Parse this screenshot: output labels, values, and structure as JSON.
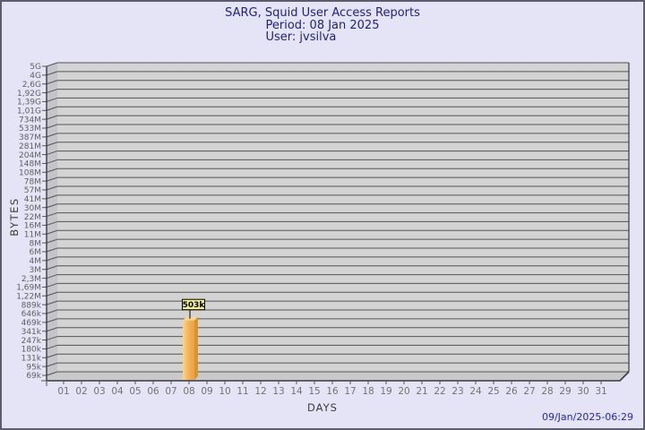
{
  "header": {
    "title": "SARG, Squid User Access Reports",
    "period": "Period: 08 Jan 2025",
    "user": "User: jvsilva"
  },
  "footer": {
    "timestamp": "09/Jan/2025-06:29"
  },
  "chart_data": {
    "type": "bar",
    "title": "SARG, Squid User Access Reports",
    "subtitle": "Period: 08 Jan 2025",
    "annotation": "User: jvsilva",
    "xlabel": "DAYS",
    "ylabel": "BYTES",
    "y_scale": "log",
    "grid": "horizontal",
    "legend": "none",
    "ylim": [
      "69k",
      "5G"
    ],
    "y_tick_labels": [
      "5G",
      "4G",
      "2,6G",
      "1,92G",
      "1,39G",
      "1,01G",
      "734M",
      "533M",
      "387M",
      "281M",
      "204M",
      "148M",
      "108M",
      "78M",
      "57M",
      "41M",
      "30M",
      "22M",
      "16M",
      "11M",
      "8M",
      "6M",
      "4M",
      "3M",
      "2,3M",
      "1,69M",
      "1,22M",
      "889k",
      "646k",
      "469k",
      "341k",
      "247k",
      "180k",
      "131k",
      "95k",
      "69k"
    ],
    "categories": [
      "01",
      "02",
      "03",
      "04",
      "05",
      "06",
      "07",
      "08",
      "09",
      "10",
      "11",
      "12",
      "13",
      "14",
      "15",
      "16",
      "17",
      "18",
      "19",
      "20",
      "21",
      "22",
      "23",
      "24",
      "25",
      "26",
      "27",
      "28",
      "29",
      "30",
      "31"
    ],
    "values": [
      0,
      0,
      0,
      0,
      0,
      0,
      0,
      503000,
      0,
      0,
      0,
      0,
      0,
      0,
      0,
      0,
      0,
      0,
      0,
      0,
      0,
      0,
      0,
      0,
      0,
      0,
      0,
      0,
      0,
      0,
      0
    ],
    "data_labels": [
      "",
      "",
      "",
      "",
      "",
      "",
      "",
      "503k",
      "",
      "",
      "",
      "",
      "",
      "",
      "",
      "",
      "",
      "",
      "",
      "",
      "",
      "",
      "",
      "",
      "",
      "",
      "",
      "",
      "",
      "",
      ""
    ]
  },
  "colors": {
    "page_bg": "#e4e4f6",
    "plot_bg": "#d3d3d3",
    "wall_bg": "#c5c5c9",
    "floor_bg": "#c9c9c9",
    "grid_line": "#555555",
    "edge_dark": "#3a3a3a",
    "title_text": "#202088",
    "timestamp_text": "#2222cc",
    "y_tick_text": "#5f5f5f",
    "x_tick_text": "#737373",
    "bar_front_light": "#fcd488",
    "bar_front_dark": "#eda33c",
    "bar_side": "#d6952f",
    "bar_top": "#fbd794",
    "value_box_bg": "#f3f388",
    "value_box_border": "#000000"
  }
}
